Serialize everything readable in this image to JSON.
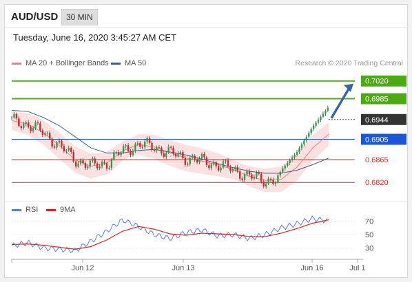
{
  "header": {
    "symbol": "AUD/USD",
    "timeframe": "30 MIN",
    "datetime": "Tuesday, June 16, 2020 3:45:27 AM CET"
  },
  "legend": {
    "ma20_label": "MA 20 + Bollinger Bands",
    "ma50_label": "MA 50",
    "research": "Research © 2020 Trading Central",
    "ma20_color": "#f08080",
    "ma50_color": "#35608f"
  },
  "rsi_legend": {
    "rsi_label": "RSI",
    "ma_label": "9MA",
    "rsi_color": "#5a7fd9",
    "ma_color": "#e02020"
  },
  "chart_data": [
    {
      "type": "candlestick",
      "title": "",
      "x_ticks": [
        "Jun 12",
        "Jun 13",
        "Jun 16",
        "Jul 1"
      ],
      "y_range": [
        0.6785,
        0.704
      ],
      "levels": [
        {
          "label": "0.7020",
          "value": 0.702,
          "kind": "resistance",
          "color": "#4caa12"
        },
        {
          "label": "0.6985",
          "value": 0.6985,
          "kind": "resistance",
          "color": "#4caa12"
        },
        {
          "label": "0.6944",
          "value": 0.6944,
          "kind": "last-price",
          "color": "#333333"
        },
        {
          "label": "0.6905",
          "value": 0.6905,
          "kind": "pivot",
          "color": "#1a56db"
        },
        {
          "label": "0.6865",
          "value": 0.6865,
          "kind": "support",
          "color": "#d43030"
        },
        {
          "label": "0.6820",
          "value": 0.682,
          "kind": "support",
          "color": "#d43030"
        }
      ],
      "series": [
        {
          "name": "MA 20 + Bollinger Bands",
          "x": [
            0,
            10,
            20,
            30,
            40,
            50,
            60,
            70,
            80,
            90,
            100,
            110,
            120,
            130,
            140,
            150,
            160,
            170,
            180,
            190,
            200
          ],
          "values": [
            0.6942,
            0.6935,
            0.6918,
            0.6893,
            0.6865,
            0.6852,
            0.6858,
            0.6882,
            0.6895,
            0.689,
            0.6878,
            0.6868,
            0.6862,
            0.6855,
            0.6845,
            0.6832,
            0.6824,
            0.6826,
            0.685,
            0.6888,
            0.6915
          ]
        },
        {
          "name": "MA 50",
          "x": [
            0,
            10,
            20,
            30,
            40,
            50,
            60,
            70,
            80,
            90,
            100,
            110,
            120,
            130,
            140,
            150,
            160,
            170,
            180,
            190,
            200
          ],
          "values": [
            0.6962,
            0.696,
            0.6948,
            0.6932,
            0.691,
            0.6888,
            0.6878,
            0.6878,
            0.6883,
            0.6885,
            0.688,
            0.6874,
            0.6866,
            0.6857,
            0.6849,
            0.6842,
            0.6838,
            0.6838,
            0.6844,
            0.6855,
            0.6868
          ]
        }
      ],
      "projection": {
        "from": 0.6944,
        "to": 0.702
      }
    },
    {
      "type": "line",
      "title": "",
      "y_ticks": [
        70,
        50,
        30
      ],
      "y_range": [
        15,
        85
      ],
      "series": [
        {
          "name": "RSI",
          "x": [
            0,
            10,
            20,
            30,
            40,
            50,
            60,
            70,
            80,
            90,
            100,
            110,
            120,
            130,
            140,
            150,
            160,
            170,
            180,
            190,
            200
          ],
          "values": [
            33,
            38,
            30,
            28,
            26,
            40,
            55,
            72,
            62,
            50,
            44,
            53,
            57,
            48,
            50,
            44,
            50,
            60,
            66,
            74,
            70
          ]
        },
        {
          "name": "9MA",
          "x": [
            0,
            10,
            20,
            30,
            40,
            50,
            60,
            70,
            80,
            90,
            100,
            110,
            120,
            130,
            140,
            150,
            160,
            170,
            180,
            190,
            200
          ],
          "values": [
            35,
            36,
            34,
            31,
            28,
            32,
            42,
            55,
            62,
            58,
            51,
            49,
            52,
            51,
            50,
            47,
            47,
            52,
            59,
            67,
            72
          ]
        }
      ]
    }
  ]
}
